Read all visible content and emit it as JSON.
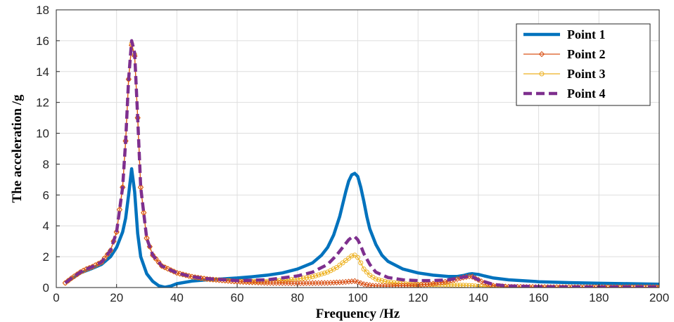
{
  "chart_data": {
    "type": "line",
    "xlabel": "Frequency /Hz",
    "ylabel": "The acceleration /g",
    "xlim": [
      0,
      200
    ],
    "ylim": [
      0,
      18
    ],
    "xticks": [
      0,
      20,
      40,
      60,
      80,
      100,
      120,
      140,
      160,
      180,
      200
    ],
    "yticks": [
      0,
      2,
      4,
      6,
      8,
      10,
      12,
      14,
      16,
      18
    ],
    "grid": true,
    "legend_position": "top-right",
    "series": [
      {
        "name": "Point 1",
        "color": "#0072BD",
        "style": "solid-thick",
        "marker": "none",
        "x": [
          3,
          5,
          8,
          10,
          12,
          15,
          18,
          20,
          22,
          23,
          24,
          25,
          26,
          27,
          28,
          30,
          32,
          34,
          36,
          38,
          40,
          45,
          50,
          55,
          60,
          65,
          70,
          75,
          80,
          85,
          88,
          90,
          92,
          94,
          95,
          96,
          97,
          98,
          99,
          100,
          101,
          102,
          103,
          104,
          106,
          108,
          110,
          115,
          120,
          125,
          130,
          133,
          135,
          137,
          138,
          140,
          142,
          145,
          150,
          160,
          170,
          180,
          190,
          200
        ],
        "y": [
          0.3,
          0.55,
          0.95,
          1.1,
          1.25,
          1.5,
          2.0,
          2.6,
          3.6,
          4.5,
          6.0,
          7.7,
          6.2,
          3.5,
          2.0,
          0.9,
          0.4,
          0.12,
          0.02,
          0.1,
          0.25,
          0.42,
          0.5,
          0.56,
          0.62,
          0.7,
          0.8,
          0.95,
          1.2,
          1.6,
          2.1,
          2.6,
          3.4,
          4.6,
          5.4,
          6.2,
          6.9,
          7.3,
          7.4,
          7.2,
          6.5,
          5.6,
          4.6,
          3.8,
          2.8,
          2.1,
          1.7,
          1.2,
          0.95,
          0.8,
          0.72,
          0.72,
          0.78,
          0.88,
          0.9,
          0.85,
          0.75,
          0.62,
          0.5,
          0.38,
          0.32,
          0.28,
          0.25,
          0.22
        ]
      },
      {
        "name": "Point 2",
        "color": "#D95319",
        "style": "solid-thin",
        "marker": "diamond",
        "x": [
          3,
          5,
          8,
          10,
          12,
          15,
          18,
          20,
          22,
          23,
          24,
          25,
          26,
          27,
          28,
          30,
          32,
          35,
          40,
          45,
          50,
          60,
          70,
          80,
          90,
          95,
          98,
          99,
          100,
          102,
          105,
          110,
          120,
          125,
          130,
          133,
          135,
          137,
          138,
          140,
          142,
          145,
          150,
          160,
          170,
          180,
          190,
          200
        ],
        "y": [
          0.3,
          0.6,
          1.0,
          1.2,
          1.35,
          1.65,
          2.4,
          3.6,
          6.5,
          9.5,
          13.5,
          15.7,
          15.0,
          11.0,
          6.5,
          3.2,
          2.1,
          1.4,
          0.95,
          0.7,
          0.55,
          0.38,
          0.3,
          0.28,
          0.3,
          0.35,
          0.4,
          0.42,
          0.35,
          0.22,
          0.12,
          0.1,
          0.15,
          0.25,
          0.4,
          0.55,
          0.65,
          0.72,
          0.7,
          0.5,
          0.3,
          0.12,
          0.05,
          0.03,
          0.02,
          0.02,
          0.02,
          0.02
        ]
      },
      {
        "name": "Point 3",
        "color": "#EDB120",
        "style": "solid-thin",
        "marker": "circle",
        "x": [
          3,
          5,
          8,
          10,
          12,
          15,
          18,
          20,
          22,
          23,
          24,
          25,
          26,
          27,
          28,
          30,
          32,
          35,
          40,
          45,
          50,
          60,
          70,
          80,
          85,
          90,
          93,
          95,
          97,
          98,
          99,
          100,
          101,
          102,
          104,
          106,
          110,
          115,
          120,
          130,
          135,
          138,
          140,
          145,
          150,
          160,
          170,
          180,
          190,
          200
        ],
        "y": [
          0.3,
          0.6,
          1.0,
          1.2,
          1.35,
          1.65,
          2.4,
          3.6,
          6.5,
          9.5,
          13.5,
          15.8,
          15.1,
          11.0,
          6.5,
          3.2,
          2.1,
          1.4,
          0.95,
          0.7,
          0.55,
          0.4,
          0.4,
          0.55,
          0.7,
          1.0,
          1.3,
          1.6,
          1.9,
          2.05,
          2.1,
          1.95,
          1.6,
          1.2,
          0.8,
          0.55,
          0.35,
          0.25,
          0.2,
          0.18,
          0.15,
          0.12,
          0.08,
          0.04,
          0.02,
          0.02,
          0.02,
          0.02,
          0.02,
          0.02
        ]
      },
      {
        "name": "Point 4",
        "color": "#7E2F8E",
        "style": "dashed-thick",
        "marker": "none",
        "x": [
          3,
          5,
          8,
          10,
          12,
          15,
          18,
          20,
          22,
          23,
          24,
          25,
          26,
          27,
          28,
          30,
          32,
          35,
          40,
          45,
          50,
          60,
          70,
          80,
          85,
          90,
          93,
          95,
          97,
          98,
          99,
          100,
          101,
          102,
          104,
          106,
          110,
          115,
          120,
          125,
          130,
          133,
          135,
          137,
          138,
          140,
          145,
          150,
          160,
          170,
          180,
          190,
          200
        ],
        "y": [
          0.3,
          0.6,
          1.0,
          1.2,
          1.35,
          1.65,
          2.4,
          3.6,
          6.5,
          9.5,
          13.5,
          16.0,
          15.2,
          11.0,
          6.5,
          3.2,
          2.1,
          1.4,
          0.95,
          0.7,
          0.58,
          0.45,
          0.5,
          0.75,
          1.0,
          1.5,
          2.1,
          2.6,
          3.1,
          3.25,
          3.3,
          3.1,
          2.7,
          2.2,
          1.5,
          1.0,
          0.65,
          0.5,
          0.45,
          0.45,
          0.5,
          0.6,
          0.68,
          0.72,
          0.7,
          0.5,
          0.2,
          0.1,
          0.06,
          0.04,
          0.04,
          0.04,
          0.04
        ]
      }
    ]
  }
}
